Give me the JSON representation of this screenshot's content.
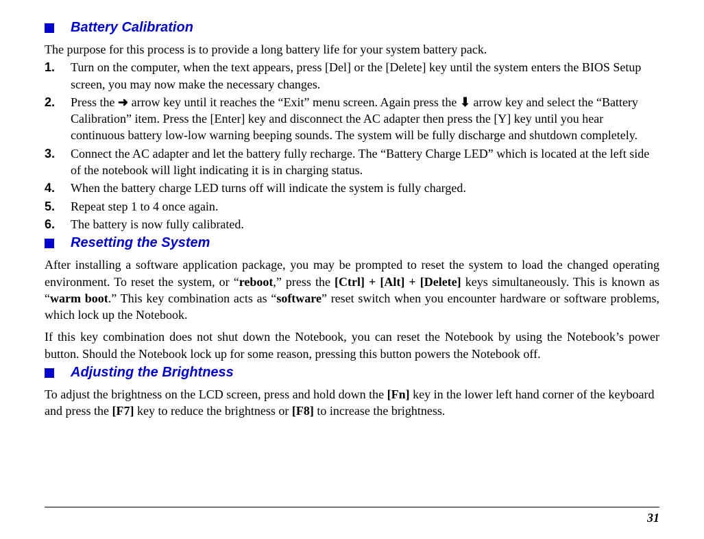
{
  "sections": {
    "batteryCalibration": {
      "title": "Battery Calibration",
      "intro": "The purpose for this process is to provide a long battery life for your system battery pack.",
      "steps": [
        "Turn on the computer, when the text appears, press [Del] or the [Delete] key until the system enters the BIOS Setup screen, you may now make the necessary changes.",
        "Press the ➨ arrow key until it reaches the “Exit” menu screen. Again press the ⬇ arrow key and select the “Battery Calibration” item.  Press the [Enter] key and disconnect the AC adapter then press the [Y] key until you hear continuous battery low-low warning beeping sounds. The system will be fully discharge and shutdown completely.",
        "Connect the AC adapter and let the battery fully recharge. The “Battery Charge LED” which is located at the left side of the notebook will light indicating it is in charging status.",
        "When the battery charge LED turns off will indicate the system is fully charged.",
        "Repeat step 1 to 4 once again.",
        "The battery is now fully calibrated."
      ]
    },
    "resettingSystem": {
      "title": "Resetting the System",
      "para1_pre": "After installing a software application package, you may be prompted to reset the system to load the changed operating environment. To reset the system, or “",
      "para1_reboot": "reboot",
      "para1_mid1": ",” press the ",
      "para1_keys": "[Ctrl] + [Alt] + [Delete]",
      "para1_mid2": " keys simultaneously. This is known as “",
      "para1_warm": "warm boot",
      "para1_mid3": ".” This key combination acts as “",
      "para1_software": "software",
      "para1_end": "” reset switch when you encounter hardware or software problems, which lock up the Notebook.",
      "para2": "If this key combination does not shut down the Notebook, you can reset the Notebook by using the Notebook’s power button. Should the Notebook lock up for some reason, pressing this button powers the Notebook off."
    },
    "adjustingBrightness": {
      "title": "Adjusting the Brightness",
      "para_pre": "To adjust the brightness on the LCD screen, press and hold down the ",
      "para_fn": "[Fn]",
      "para_mid1": " key in the lower left hand corner of the keyboard and press the ",
      "para_f7": "[F7]",
      "para_mid2": " key to reduce the brightness or ",
      "para_f8": "[F8]",
      "para_end": " to increase the brightness."
    }
  },
  "arrowRight": "➜",
  "arrowDown": "⬇",
  "pageNumber": "31",
  "colors": {
    "accent": "#0000cc",
    "text": "#000000",
    "background": "#ffffff"
  },
  "fonts": {
    "heading": "Arial",
    "body": "Times New Roman",
    "headingSize": 20,
    "bodySize": 18
  }
}
